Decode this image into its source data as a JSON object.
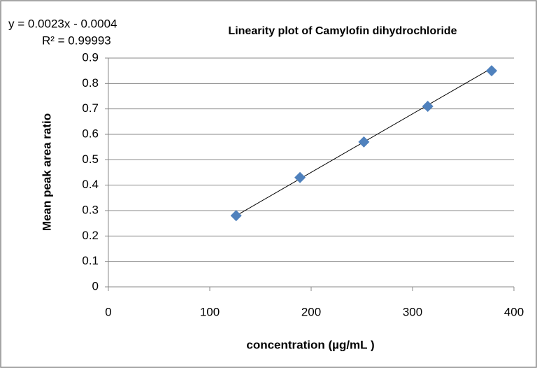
{
  "chart_data": {
    "type": "scatter",
    "title": "Linearity plot of Camylofin dihydrochloride",
    "equation": "y = 0.0023x - 0.0004",
    "r_squared": "R² = 0.99993",
    "x_label": "concentration (µg/mL )",
    "y_label": "Mean peak area ratio",
    "series": [
      {
        "color": "#4f81bd",
        "x": [
          126,
          189,
          252,
          315,
          378
        ],
        "values": [
          0.28,
          0.43,
          0.57,
          0.71,
          0.85
        ]
      }
    ],
    "trendline": {
      "color": "#000000",
      "x": [
        126,
        378
      ],
      "values": [
        0.28,
        0.86
      ]
    },
    "xlim": [
      0,
      400
    ],
    "xticks": [
      0,
      100,
      200,
      300,
      400
    ],
    "ylim": [
      0,
      0.9
    ],
    "yticks": [
      0,
      0.1,
      0.2,
      0.3,
      0.4,
      0.5,
      0.6,
      0.7,
      0.8,
      0.9
    ],
    "grid": true
  }
}
